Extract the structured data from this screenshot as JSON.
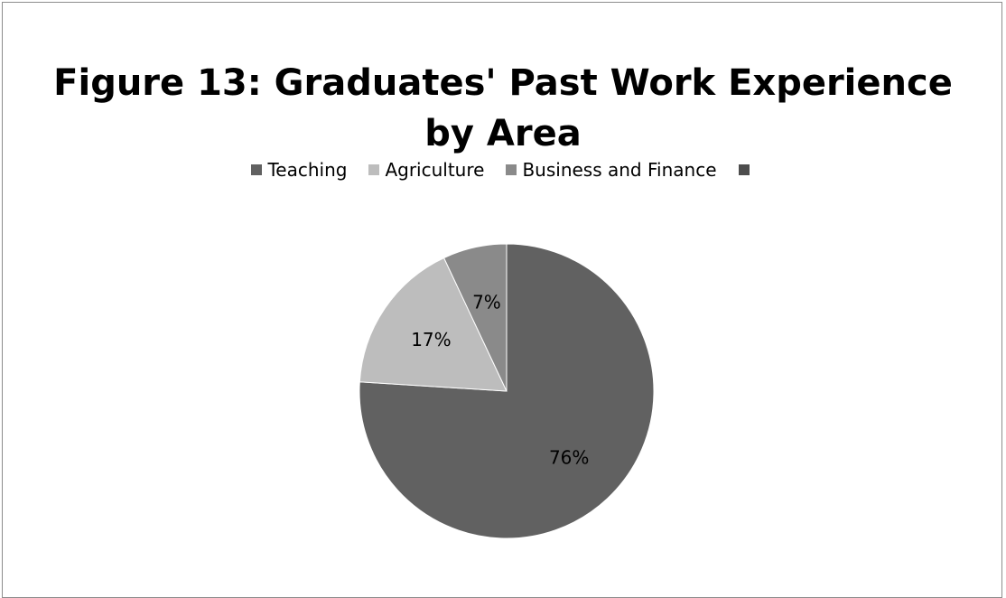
{
  "chart_data": {
    "type": "pie",
    "title_lines": [
      "Figure 13: Graduates' Past Work Experience",
      "by Area"
    ],
    "categories": [
      "Teaching",
      "Agriculture",
      "Business and Finance",
      ""
    ],
    "values": [
      76,
      17,
      7,
      0
    ],
    "data_labels": [
      "76%",
      "17%",
      "7%",
      ""
    ],
    "colors": [
      "#616161",
      "#bdbdbd",
      "#8a8a8a",
      "#4d4d4d"
    ],
    "legend_position": "top",
    "start_angle_deg": 0,
    "direction": "clockwise"
  }
}
